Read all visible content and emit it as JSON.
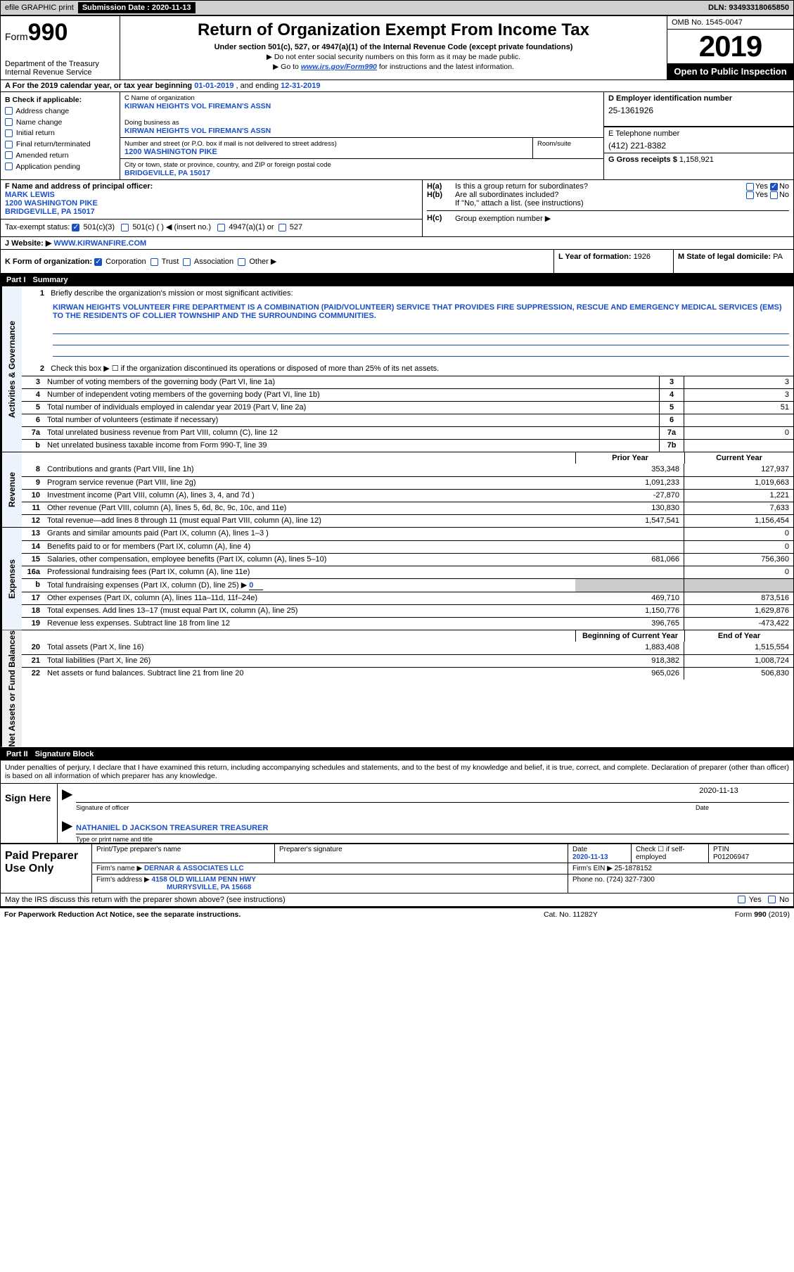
{
  "topbar": {
    "efile": "efile GRAPHIC print",
    "submission_label": "Submission Date : 2020-11-13",
    "dln": "DLN: 93493318065850"
  },
  "header": {
    "form_prefix": "Form",
    "form_number": "990",
    "dept": "Department of the Treasury",
    "irs": "Internal Revenue Service",
    "title": "Return of Organization Exempt From Income Tax",
    "sub1": "Under section 501(c), 527, or 4947(a)(1) of the Internal Revenue Code (except private foundations)",
    "sub2": "▶ Do not enter social security numbers on this form as it may be made public.",
    "sub3a": "▶ Go to ",
    "sub3b": "www.irs.gov/Form990",
    "sub3c": " for instructions and the latest information.",
    "omb": "OMB No. 1545-0047",
    "year": "2019",
    "open": "Open to Public Inspection"
  },
  "rowA": {
    "text_a": "A For the 2019 calendar year, or tax year beginning ",
    "begin": "01-01-2019",
    "mid": " , and ending ",
    "end": "12-31-2019"
  },
  "colB": {
    "hdr": "B Check if applicable:",
    "items": [
      "Address change",
      "Name change",
      "Initial return",
      "Final return/terminated",
      "Amended return",
      "Application pending"
    ]
  },
  "colC": {
    "name_label": "C Name of organization",
    "name": "KIRWAN HEIGHTS VOL FIREMAN'S ASSN",
    "dba_label": "Doing business as",
    "dba": "KIRWAN HEIGHTS VOL FIREMAN'S ASSN",
    "addr_label": "Number and street (or P.O. box if mail is not delivered to street address)",
    "room_label": "Room/suite",
    "addr": "1200 WASHINGTON PIKE",
    "city_label": "City or town, state or province, country, and ZIP or foreign postal code",
    "city": "BRIDGEVILLE, PA  15017"
  },
  "colD": {
    "ein_label": "D Employer identification number",
    "ein": "25-1361926",
    "phone_label": "E Telephone number",
    "phone": "(412) 221-8382",
    "gross_label": "G Gross receipts $ ",
    "gross": "1,158,921"
  },
  "rowF": {
    "label": "F Name and address of principal officer:",
    "name": "MARK LEWIS",
    "addr1": "1200 WASHINGTON PIKE",
    "addr2": "BRIDGEVILLE, PA  15017"
  },
  "rowH": {
    "ha_label": "H(a)",
    "ha_text": "Is this a group return for subordinates?",
    "hb_label": "H(b)",
    "hb_text": "Are all subordinates included?",
    "hb_note": "If \"No,\" attach a list. (see instructions)",
    "hc_label": "H(c)",
    "hc_text": "Group exemption number ▶",
    "yes": "Yes",
    "no": "No"
  },
  "rowI": {
    "label": "Tax-exempt status:",
    "o1": "501(c)(3)",
    "o2": "501(c) (  ) ◀ (insert no.)",
    "o3": "4947(a)(1) or",
    "o4": "527"
  },
  "rowJ": {
    "label": "J   Website: ▶",
    "value": "WWW.KIRWANFIRE.COM"
  },
  "rowK": {
    "label": "K Form of organization:",
    "o1": "Corporation",
    "o2": "Trust",
    "o3": "Association",
    "o4": "Other ▶",
    "l_label": "L Year of formation: ",
    "l_val": "1926",
    "m_label": "M State of legal domicile: ",
    "m_val": "PA"
  },
  "part1": {
    "num": "Part I",
    "title": "Summary"
  },
  "gov": {
    "tab": "Activities & Governance",
    "l1": "Briefly describe the organization's mission or most significant activities:",
    "mission": "KIRWAN HEIGHTS VOLUNTEER FIRE DEPARTMENT IS A COMBINATION (PAID/VOLUNTEER) SERVICE THAT PROVIDES FIRE SUPPRESSION, RESCUE AND EMERGENCY MEDICAL SERVICES (EMS) TO THE RESIDENTS OF COLLIER TOWNSHIP AND THE SURROUNDING COMMUNITIES.",
    "l2": "Check this box ▶ ☐  if the organization discontinued its operations or disposed of more than 25% of its net assets.",
    "l3": "Number of voting members of the governing body (Part VI, line 1a)",
    "l4": "Number of independent voting members of the governing body (Part VI, line 1b)",
    "l5": "Total number of individuals employed in calendar year 2019 (Part V, line 2a)",
    "l6": "Total number of volunteers (estimate if necessary)",
    "l7a": "Total unrelated business revenue from Part VIII, column (C), line 12",
    "l7b": "Net unrelated business taxable income from Form 990-T, line 39",
    "v3": "3",
    "v4": "3",
    "v5": "51",
    "v6": "",
    "v7a": "0",
    "v7b": ""
  },
  "rev": {
    "tab": "Revenue",
    "prior_hdr": "Prior Year",
    "curr_hdr": "Current Year",
    "lines": [
      {
        "n": "8",
        "d": "Contributions and grants (Part VIII, line 1h)",
        "p": "353,348",
        "c": "127,937"
      },
      {
        "n": "9",
        "d": "Program service revenue (Part VIII, line 2g)",
        "p": "1,091,233",
        "c": "1,019,663"
      },
      {
        "n": "10",
        "d": "Investment income (Part VIII, column (A), lines 3, 4, and 7d )",
        "p": "-27,870",
        "c": "1,221"
      },
      {
        "n": "11",
        "d": "Other revenue (Part VIII, column (A), lines 5, 6d, 8c, 9c, 10c, and 11e)",
        "p": "130,830",
        "c": "7,633"
      },
      {
        "n": "12",
        "d": "Total revenue—add lines 8 through 11 (must equal Part VIII, column (A), line 12)",
        "p": "1,547,541",
        "c": "1,156,454"
      }
    ]
  },
  "exp": {
    "tab": "Expenses",
    "lines": [
      {
        "n": "13",
        "d": "Grants and similar amounts paid (Part IX, column (A), lines 1–3 )",
        "p": "",
        "c": "0"
      },
      {
        "n": "14",
        "d": "Benefits paid to or for members (Part IX, column (A), line 4)",
        "p": "",
        "c": "0"
      },
      {
        "n": "15",
        "d": "Salaries, other compensation, employee benefits (Part IX, column (A), lines 5–10)",
        "p": "681,066",
        "c": "756,360"
      },
      {
        "n": "16a",
        "d": "Professional fundraising fees (Part IX, column (A), line 11e)",
        "p": "",
        "c": "0"
      },
      {
        "n": "b",
        "d": "Total fundraising expenses (Part IX, column (D), line 25) ▶",
        "p": "SHADE",
        "c": "SHADE",
        "fund": "0"
      },
      {
        "n": "17",
        "d": "Other expenses (Part IX, column (A), lines 11a–11d, 11f–24e)",
        "p": "469,710",
        "c": "873,516"
      },
      {
        "n": "18",
        "d": "Total expenses. Add lines 13–17 (must equal Part IX, column (A), line 25)",
        "p": "1,150,776",
        "c": "1,629,876"
      },
      {
        "n": "19",
        "d": "Revenue less expenses. Subtract line 18 from line 12",
        "p": "396,765",
        "c": "-473,422"
      }
    ]
  },
  "net": {
    "tab": "Net Assets or Fund Balances",
    "h1": "Beginning of Current Year",
    "h2": "End of Year",
    "lines": [
      {
        "n": "20",
        "d": "Total assets (Part X, line 16)",
        "p": "1,883,408",
        "c": "1,515,554"
      },
      {
        "n": "21",
        "d": "Total liabilities (Part X, line 26)",
        "p": "918,382",
        "c": "1,008,724"
      },
      {
        "n": "22",
        "d": "Net assets or fund balances. Subtract line 21 from line 20",
        "p": "965,026",
        "c": "506,830"
      }
    ]
  },
  "part2": {
    "num": "Part II",
    "title": "Signature Block",
    "intro": "Under penalties of perjury, I declare that I have examined this return, including accompanying schedules and statements, and to the best of my knowledge and belief, it is true, correct, and complete. Declaration of preparer (other than officer) is based on all information of which preparer has any knowledge."
  },
  "sign": {
    "here": "Sign Here",
    "sig_label": "Signature of officer",
    "date_label": "Date",
    "date": "2020-11-13",
    "name": "NATHANIEL D JACKSON TREASURER  TREASURER",
    "name_label": "Type or print name and title"
  },
  "prep": {
    "left": "Paid Preparer Use Only",
    "h1": "Print/Type preparer's name",
    "h2": "Preparer's signature",
    "h3": "Date",
    "date": "2020-11-13",
    "h4": "Check ☐ if self-employed",
    "h5": "PTIN",
    "ptin": "P01206947",
    "firm_name_l": "Firm's name    ▶",
    "firm_name": "DERNAR & ASSOCIATES LLC",
    "firm_ein_l": "Firm's EIN ▶ ",
    "firm_ein": "25-1878152",
    "firm_addr_l": "Firm's address ▶",
    "firm_addr1": "4158 OLD WILLIAM PENN HWY",
    "firm_addr2": "MURRYSVILLE, PA  15668",
    "phone_l": "Phone no. ",
    "phone": "(724) 327-7300"
  },
  "discuss": {
    "text": "May the IRS discuss this return with the preparer shown above? (see instructions)",
    "yes": "Yes",
    "no": "No"
  },
  "footer": {
    "f1": "For Paperwork Reduction Act Notice, see the separate instructions.",
    "f2": "Cat. No. 11282Y",
    "f3": "Form 990 (2019)"
  }
}
